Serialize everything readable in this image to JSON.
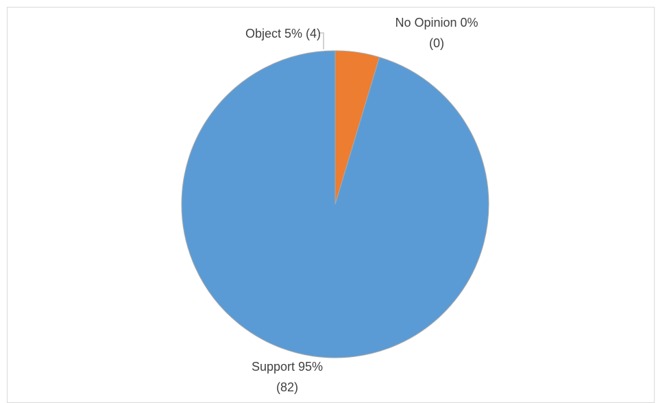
{
  "chart_data": {
    "type": "pie",
    "title": "",
    "start_angle_deg": 0,
    "direction": "clockwise",
    "slices": [
      {
        "name": "Object",
        "value": 4,
        "percent_label": "5%",
        "count_label": "(4)",
        "color": "#ED7D31"
      },
      {
        "name": "No Opinion",
        "value": 0,
        "percent_label": "0%",
        "count_label": "(0)",
        "color": "#A5A5A5"
      },
      {
        "name": "Support",
        "value": 82,
        "percent_label": "95%",
        "count_label": "(82)",
        "color": "#5B9BD5"
      }
    ],
    "labels": {
      "object": {
        "line1": "Object 5% (4)"
      },
      "no_opinion": {
        "line1": "No Opinion 0%",
        "line2": "(0)"
      },
      "support": {
        "line1": "Support 95%",
        "line2": "(82)"
      }
    },
    "legend": "none"
  }
}
